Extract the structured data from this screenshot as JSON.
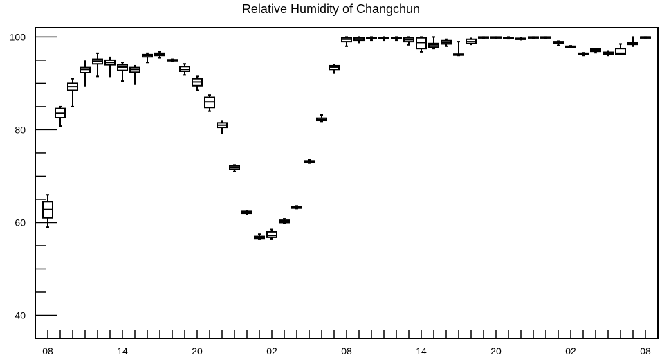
{
  "chart_data": {
    "type": "boxplot",
    "title": "Relative Humidity of Changchun",
    "xlabel": "",
    "ylabel": "",
    "ylim": [
      35,
      102
    ],
    "y_ticks": [
      40,
      60,
      80,
      100
    ],
    "x_tick_labels": [
      "08",
      "14",
      "20",
      "02",
      "08",
      "14",
      "20",
      "02",
      "08"
    ],
    "x_tick_label_hour_index": [
      0,
      6,
      12,
      18,
      24,
      30,
      36,
      42,
      48
    ],
    "grid": false,
    "boxes": [
      {
        "hour": 0,
        "min": 59,
        "q1": 61.0,
        "median": 62.8,
        "q3": 64.5,
        "max": 66.0
      },
      {
        "hour": 1,
        "min": 80.8,
        "q1": 82.6,
        "median": 83.6,
        "q3": 84.6,
        "max": 85.0
      },
      {
        "hour": 2,
        "min": 85.0,
        "q1": 88.5,
        "median": 89.3,
        "q3": 90.0,
        "max": 91.0
      },
      {
        "hour": 3,
        "min": 89.5,
        "q1": 92.3,
        "median": 93.0,
        "q3": 93.4,
        "max": 94.8
      },
      {
        "hour": 4,
        "min": 91.5,
        "q1": 94.2,
        "median": 94.8,
        "q3": 95.2,
        "max": 96.5
      },
      {
        "hour": 5,
        "min": 91.5,
        "q1": 94.0,
        "median": 94.5,
        "q3": 95.0,
        "max": 95.6
      },
      {
        "hour": 6,
        "min": 90.5,
        "q1": 92.8,
        "median": 93.5,
        "q3": 94.0,
        "max": 94.5
      },
      {
        "hour": 7,
        "min": 89.8,
        "q1": 92.4,
        "median": 93.0,
        "q3": 93.4,
        "max": 93.8
      },
      {
        "hour": 8,
        "min": 94.5,
        "q1": 95.7,
        "median": 96.0,
        "q3": 96.2,
        "max": 96.5
      },
      {
        "hour": 9,
        "min": 95.5,
        "q1": 96.0,
        "median": 96.3,
        "q3": 96.5,
        "max": 96.8
      },
      {
        "hour": 10,
        "min": 94.7,
        "q1": 94.9,
        "median": 95.0,
        "q3": 95.1,
        "max": 95.2
      },
      {
        "hour": 11,
        "min": 91.8,
        "q1": 92.6,
        "median": 93.0,
        "q3": 93.6,
        "max": 94.2
      },
      {
        "hour": 12,
        "min": 88.5,
        "q1": 89.5,
        "median": 90.3,
        "q3": 91.0,
        "max": 91.5
      },
      {
        "hour": 13,
        "min": 84.0,
        "q1": 84.8,
        "median": 86.0,
        "q3": 87.0,
        "max": 87.5
      },
      {
        "hour": 14,
        "min": 79.2,
        "q1": 80.5,
        "median": 81.0,
        "q3": 81.5,
        "max": 81.8
      },
      {
        "hour": 15,
        "min": 71.0,
        "q1": 71.5,
        "median": 71.9,
        "q3": 72.2,
        "max": 72.4
      },
      {
        "hour": 16,
        "min": 61.8,
        "q1": 62.0,
        "median": 62.2,
        "q3": 62.4,
        "max": 62.5
      },
      {
        "hour": 17,
        "min": 56.5,
        "q1": 56.6,
        "median": 56.8,
        "q3": 57.0,
        "max": 57.5
      },
      {
        "hour": 18,
        "min": 56.5,
        "q1": 56.8,
        "median": 57.2,
        "q3": 58.0,
        "max": 58.5
      },
      {
        "hour": 19,
        "min": 59.8,
        "q1": 60.0,
        "median": 60.3,
        "q3": 60.5,
        "max": 60.8
      },
      {
        "hour": 20,
        "min": 63.0,
        "q1": 63.1,
        "median": 63.3,
        "q3": 63.5,
        "max": 63.6
      },
      {
        "hour": 21,
        "min": 72.8,
        "q1": 72.9,
        "median": 73.1,
        "q3": 73.3,
        "max": 73.5
      },
      {
        "hour": 22,
        "min": 81.8,
        "q1": 82.0,
        "median": 82.2,
        "q3": 82.5,
        "max": 83.2
      },
      {
        "hour": 23,
        "min": 92.2,
        "q1": 93.0,
        "median": 93.5,
        "q3": 93.8,
        "max": 94.0
      },
      {
        "hour": 24,
        "min": 98.0,
        "q1": 99.0,
        "median": 99.5,
        "q3": 99.8,
        "max": 100.0
      },
      {
        "hour": 25,
        "min": 98.8,
        "q1": 99.3,
        "median": 99.6,
        "q3": 99.9,
        "max": 100.0
      },
      {
        "hour": 26,
        "min": 99.3,
        "q1": 99.7,
        "median": 99.8,
        "q3": 99.9,
        "max": 100.0
      },
      {
        "hour": 27,
        "min": 99.3,
        "q1": 99.7,
        "median": 99.8,
        "q3": 99.9,
        "max": 100.0
      },
      {
        "hour": 28,
        "min": 99.3,
        "q1": 99.7,
        "median": 99.8,
        "q3": 99.9,
        "max": 100.0
      },
      {
        "hour": 29,
        "min": 98.3,
        "q1": 99.0,
        "median": 99.4,
        "q3": 99.8,
        "max": 100.0
      },
      {
        "hour": 30,
        "min": 96.8,
        "q1": 97.5,
        "median": 98.8,
        "q3": 99.8,
        "max": 100.0
      },
      {
        "hour": 31,
        "min": 97.5,
        "q1": 97.8,
        "median": 98.3,
        "q3": 98.6,
        "max": 100.0
      },
      {
        "hour": 32,
        "min": 98.0,
        "q1": 98.5,
        "median": 98.8,
        "q3": 99.2,
        "max": 99.5
      },
      {
        "hour": 33,
        "min": 96.0,
        "q1": 96.1,
        "median": 96.2,
        "q3": 96.3,
        "max": 99.0
      },
      {
        "hour": 34,
        "min": 98.4,
        "q1": 98.6,
        "median": 99.0,
        "q3": 99.5,
        "max": 99.7
      },
      {
        "hour": 35,
        "min": 99.7,
        "q1": 99.8,
        "median": 99.9,
        "q3": 100.0,
        "max": 100.0
      },
      {
        "hour": 36,
        "min": 99.7,
        "q1": 99.8,
        "median": 99.9,
        "q3": 100.0,
        "max": 100.0
      },
      {
        "hour": 37,
        "min": 99.6,
        "q1": 99.7,
        "median": 99.8,
        "q3": 99.9,
        "max": 100.0
      },
      {
        "hour": 38,
        "min": 99.4,
        "q1": 99.5,
        "median": 99.6,
        "q3": 99.7,
        "max": 99.8
      },
      {
        "hour": 39,
        "min": 99.7,
        "q1": 99.8,
        "median": 99.9,
        "q3": 100.0,
        "max": 100.0
      },
      {
        "hour": 40,
        "min": 99.7,
        "q1": 99.8,
        "median": 99.9,
        "q3": 100.0,
        "max": 100.0
      },
      {
        "hour": 41,
        "min": 98.2,
        "q1": 98.6,
        "median": 98.8,
        "q3": 99.0,
        "max": 99.1
      },
      {
        "hour": 42,
        "min": 97.7,
        "q1": 97.8,
        "median": 97.9,
        "q3": 98.0,
        "max": 98.1
      },
      {
        "hour": 43,
        "min": 96.0,
        "q1": 96.2,
        "median": 96.3,
        "q3": 96.5,
        "max": 96.6
      },
      {
        "hour": 44,
        "min": 96.6,
        "q1": 96.9,
        "median": 97.2,
        "q3": 97.4,
        "max": 97.5
      },
      {
        "hour": 45,
        "min": 96.0,
        "q1": 96.3,
        "median": 96.5,
        "q3": 96.7,
        "max": 97.0
      },
      {
        "hour": 46,
        "min": 96.2,
        "q1": 96.3,
        "median": 96.5,
        "q3": 97.5,
        "max": 98.5
      },
      {
        "hour": 47,
        "min": 98.0,
        "q1": 98.4,
        "median": 98.6,
        "q3": 98.8,
        "max": 100.0
      },
      {
        "hour": 48,
        "min": 99.8,
        "q1": 99.9,
        "median": 100.0,
        "q3": 100.0,
        "max": 100.0
      }
    ]
  }
}
